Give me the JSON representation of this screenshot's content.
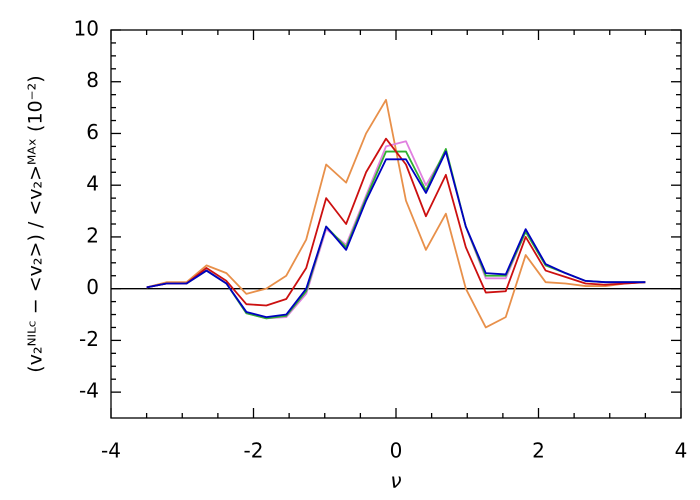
{
  "chart_data": {
    "type": "line",
    "x_label": "ν",
    "y_label": "(v₂ᴺᴵᴸᶜ − <v₂>) / <v₂>ᴹᴬˣ (10⁻²)",
    "x": [
      -3.5,
      -3.22,
      -2.94,
      -2.66,
      -2.38,
      -2.1,
      -1.82,
      -1.54,
      -1.26,
      -0.98,
      -0.7,
      -0.42,
      -0.14,
      0.14,
      0.42,
      0.7,
      0.98,
      1.26,
      1.54,
      1.82,
      2.1,
      2.38,
      2.66,
      2.94,
      3.22,
      3.5
    ],
    "series": [
      {
        "color": "#e8904a",
        "values": [
          0.05,
          0.25,
          0.25,
          0.9,
          0.6,
          -0.2,
          0.0,
          0.5,
          1.9,
          4.8,
          4.1,
          6.0,
          7.3,
          3.4,
          1.5,
          2.9,
          0.0,
          -1.5,
          -1.1,
          1.3,
          0.25,
          0.2,
          0.1,
          0.1,
          0.2,
          0.25
        ]
      },
      {
        "color": "#e080e0",
        "values": [
          0.05,
          0.2,
          0.2,
          0.7,
          0.2,
          -0.95,
          -1.15,
          -1.1,
          -0.2,
          2.3,
          1.7,
          3.6,
          5.5,
          5.7,
          4.0,
          5.3,
          2.4,
          0.4,
          0.4,
          2.2,
          0.9,
          0.6,
          0.3,
          0.25,
          0.25,
          0.25
        ]
      },
      {
        "color": "#30b030",
        "values": [
          0.05,
          0.2,
          0.2,
          0.7,
          0.2,
          -0.95,
          -1.15,
          -1.05,
          -0.1,
          2.4,
          1.6,
          3.5,
          5.3,
          5.3,
          3.8,
          5.4,
          2.4,
          0.5,
          0.5,
          2.2,
          0.9,
          0.6,
          0.3,
          0.25,
          0.25,
          0.25
        ]
      },
      {
        "color": "#cc1010",
        "values": [
          0.05,
          0.2,
          0.2,
          0.8,
          0.3,
          -0.6,
          -0.65,
          -0.4,
          0.8,
          3.5,
          2.5,
          4.5,
          5.8,
          4.8,
          2.8,
          4.4,
          1.6,
          -0.15,
          -0.1,
          2.0,
          0.7,
          0.45,
          0.2,
          0.15,
          0.2,
          0.25
        ]
      },
      {
        "color": "#0000c0",
        "values": [
          0.05,
          0.2,
          0.2,
          0.7,
          0.2,
          -0.9,
          -1.1,
          -1.0,
          0.0,
          2.4,
          1.5,
          3.4,
          5.0,
          5.0,
          3.7,
          5.3,
          2.4,
          0.6,
          0.55,
          2.3,
          0.95,
          0.6,
          0.3,
          0.25,
          0.25,
          0.25
        ]
      }
    ],
    "reference_line": 0,
    "xlim": [
      -4,
      4
    ],
    "xticks": [
      -4,
      -2,
      0,
      2,
      4
    ],
    "ylim": [
      -5,
      10
    ],
    "yticks": [
      -4,
      -2,
      0,
      2,
      4,
      6,
      8,
      10
    ],
    "grid": false
  }
}
